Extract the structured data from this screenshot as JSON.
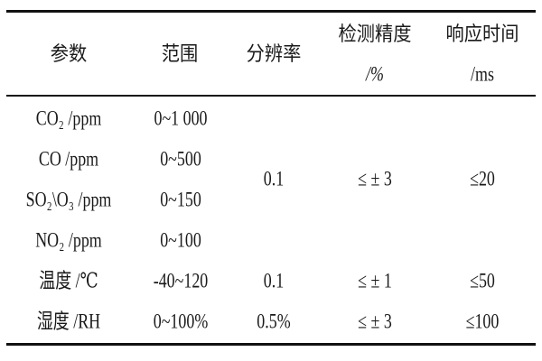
{
  "table": {
    "headers": [
      {
        "line1": "参数",
        "line2": ""
      },
      {
        "line1": "范围",
        "line2": ""
      },
      {
        "line1": "分辨率",
        "line2": ""
      },
      {
        "line1": "检测精度",
        "line2": "/%"
      },
      {
        "line1": "响应时间",
        "line2": "/ms"
      }
    ],
    "rows": [
      {
        "param": "CO₂ /ppm",
        "range": "0~1 000"
      },
      {
        "param": "CO /ppm",
        "range": "0~500"
      },
      {
        "param": "SO₂\\O₃ /ppm",
        "range": "0~150"
      },
      {
        "param": "NO₂ /ppm",
        "range": "0~100"
      },
      {
        "param": "温度 /℃",
        "range": "-40~120",
        "resolution": "0.1",
        "accuracy": "≤ ± 1",
        "response": "≤50"
      },
      {
        "param": "湿度 /RH",
        "range": "0~100%",
        "resolution": "0.5%",
        "accuracy": "≤ ± 3",
        "response": "≤100"
      }
    ],
    "gas_group": {
      "resolution": "0.1",
      "accuracy": "≤ ± 3",
      "response": "≤20"
    }
  }
}
